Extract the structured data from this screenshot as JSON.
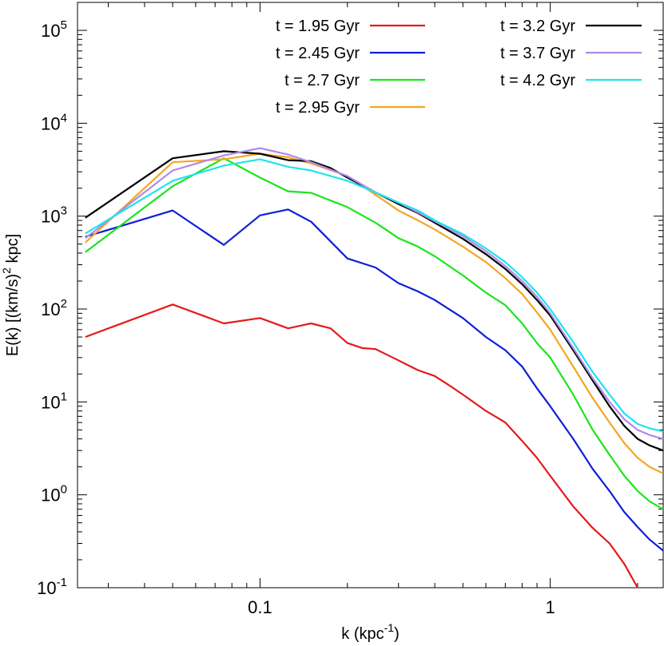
{
  "chart_data": {
    "type": "line",
    "title": "",
    "xlabel": {
      "base": "k (kpc",
      "sup": "-1",
      "tail": ")"
    },
    "ylabel": {
      "base": "E(k) [(km/s)",
      "sup": "2",
      "tail": " kpc]"
    },
    "xscale": "log",
    "yscale": "log",
    "xlim": [
      0.0235,
      2.45
    ],
    "ylim": [
      0.1,
      200000
    ],
    "grid": false,
    "legend_position": "top-right",
    "x_ticks": [
      {
        "value": 0.1,
        "label": "0.1"
      },
      {
        "value": 1,
        "label": "1"
      }
    ],
    "y_ticks": [
      {
        "value": 0.1,
        "base": "10",
        "exp": "-1"
      },
      {
        "value": 1,
        "base": "10",
        "exp": "0"
      },
      {
        "value": 10,
        "base": "10",
        "exp": "1"
      },
      {
        "value": 100,
        "base": "10",
        "exp": "2"
      },
      {
        "value": 1000,
        "base": "10",
        "exp": "3"
      },
      {
        "value": 10000,
        "base": "10",
        "exp": "4"
      },
      {
        "value": 100000,
        "base": "10",
        "exp": "5"
      }
    ],
    "series": [
      {
        "name": "t = 1.95 Gyr",
        "color": "#e41a1c",
        "x": [
          0.025,
          0.05,
          0.075,
          0.1,
          0.125,
          0.15,
          0.175,
          0.2,
          0.225,
          0.25,
          0.3,
          0.35,
          0.4,
          0.45,
          0.5,
          0.6,
          0.7,
          0.8,
          0.9,
          1.0,
          1.2,
          1.4,
          1.6,
          1.8,
          2.0,
          2.2,
          2.45
        ],
        "y": [
          50,
          112,
          70,
          80,
          62,
          70,
          62,
          43,
          38,
          37,
          28,
          22,
          19,
          15,
          12,
          8,
          6,
          3.8,
          2.5,
          1.6,
          0.75,
          0.44,
          0.3,
          0.18,
          0.1,
          0.07,
          0.05
        ]
      },
      {
        "name": "t = 2.45 Gyr",
        "color": "#0f1fd8",
        "x": [
          0.025,
          0.05,
          0.075,
          0.1,
          0.125,
          0.15,
          0.2,
          0.25,
          0.3,
          0.35,
          0.4,
          0.5,
          0.6,
          0.7,
          0.8,
          0.9,
          1.0,
          1.2,
          1.4,
          1.6,
          1.8,
          2.0,
          2.2,
          2.45
        ],
        "y": [
          600,
          1150,
          490,
          1020,
          1180,
          870,
          350,
          280,
          190,
          155,
          125,
          80,
          50,
          36,
          24,
          14,
          9,
          4,
          1.9,
          1.1,
          0.65,
          0.45,
          0.33,
          0.25
        ]
      },
      {
        "name": "t = 2.7 Gyr",
        "color": "#1be51b",
        "x": [
          0.025,
          0.05,
          0.075,
          0.1,
          0.125,
          0.15,
          0.2,
          0.25,
          0.3,
          0.35,
          0.4,
          0.5,
          0.6,
          0.7,
          0.8,
          0.9,
          1.0,
          1.2,
          1.4,
          1.6,
          1.8,
          2.0,
          2.2,
          2.45
        ],
        "y": [
          410,
          2100,
          4200,
          2600,
          1850,
          1780,
          1250,
          850,
          580,
          470,
          370,
          230,
          150,
          110,
          70,
          43,
          30,
          12,
          5,
          2.7,
          1.6,
          1.1,
          0.85,
          0.7
        ]
      },
      {
        "name": "t = 2.95 Gyr",
        "color": "#f4a623",
        "x": [
          0.025,
          0.05,
          0.075,
          0.1,
          0.125,
          0.15,
          0.2,
          0.25,
          0.3,
          0.35,
          0.4,
          0.5,
          0.6,
          0.7,
          0.8,
          0.9,
          1.0,
          1.2,
          1.4,
          1.6,
          1.8,
          2.0,
          2.2,
          2.45
        ],
        "y": [
          520,
          3800,
          4100,
          4700,
          4300,
          3700,
          2700,
          1700,
          1150,
          900,
          720,
          470,
          320,
          215,
          145,
          92,
          60,
          24,
          11,
          6,
          3.6,
          2.5,
          2,
          1.7
        ]
      },
      {
        "name": "t = 3.2 Gyr",
        "color": "#000000",
        "x": [
          0.025,
          0.05,
          0.075,
          0.1,
          0.125,
          0.15,
          0.175,
          0.2,
          0.25,
          0.3,
          0.35,
          0.4,
          0.5,
          0.6,
          0.7,
          0.8,
          0.9,
          1.0,
          1.2,
          1.4,
          1.6,
          1.8,
          2.0,
          2.2,
          2.45
        ],
        "y": [
          960,
          4200,
          5000,
          4700,
          4000,
          3900,
          3300,
          2600,
          1800,
          1350,
          1080,
          850,
          570,
          390,
          270,
          185,
          125,
          85,
          36,
          17,
          9,
          5.5,
          4,
          3.4,
          3
        ]
      },
      {
        "name": "t = 3.7 Gyr",
        "color": "#b08ae8",
        "x": [
          0.025,
          0.05,
          0.075,
          0.1,
          0.125,
          0.15,
          0.2,
          0.25,
          0.3,
          0.35,
          0.4,
          0.5,
          0.6,
          0.7,
          0.8,
          0.9,
          1.0,
          1.2,
          1.4,
          1.6,
          1.8,
          2.0,
          2.2,
          2.45
        ],
        "y": [
          580,
          3100,
          4500,
          5400,
          4600,
          3800,
          2700,
          1800,
          1400,
          1100,
          880,
          610,
          420,
          290,
          200,
          135,
          90,
          38,
          18,
          10,
          6.5,
          5,
          4.4,
          4
        ]
      },
      {
        "name": "t = 4.2 Gyr",
        "color": "#1ee4ec",
        "x": [
          0.025,
          0.05,
          0.075,
          0.1,
          0.125,
          0.15,
          0.2,
          0.25,
          0.3,
          0.35,
          0.4,
          0.5,
          0.6,
          0.7,
          0.8,
          0.9,
          1.0,
          1.2,
          1.4,
          1.6,
          1.8,
          2.0,
          2.2,
          2.45
        ],
        "y": [
          650,
          2400,
          3500,
          4100,
          3400,
          3100,
          2400,
          1800,
          1400,
          1150,
          900,
          640,
          450,
          320,
          220,
          150,
          100,
          44,
          21,
          12,
          7.5,
          5.8,
          5.2,
          4.8
        ]
      }
    ]
  }
}
